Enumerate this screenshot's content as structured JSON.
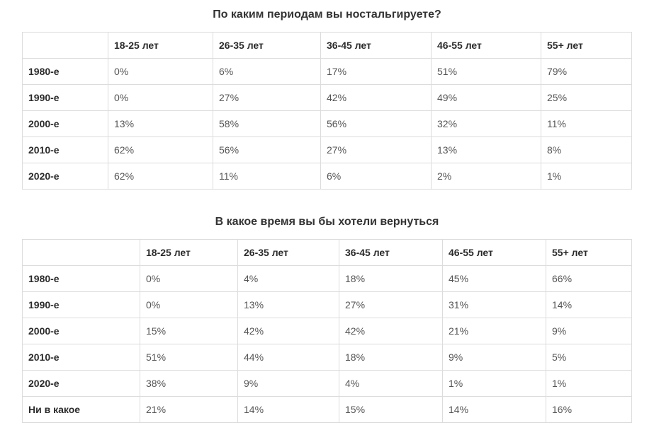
{
  "section1": {
    "title": "По каким периодам вы ностальгируете?",
    "columns": [
      "",
      "18-25 лет",
      "26-35 лет",
      "36-45 лет",
      "46-55 лет",
      "55+ лет"
    ],
    "rows": [
      {
        "label": "1980-е",
        "values": [
          "0%",
          "6%",
          "17%",
          "51%",
          "79%"
        ]
      },
      {
        "label": "1990-е",
        "values": [
          "0%",
          "27%",
          "42%",
          "49%",
          "25%"
        ]
      },
      {
        "label": "2000-е",
        "values": [
          "13%",
          "58%",
          "56%",
          "32%",
          "11%"
        ]
      },
      {
        "label": "2010-е",
        "values": [
          "62%",
          "56%",
          "27%",
          "13%",
          "8%"
        ]
      },
      {
        "label": "2020-е",
        "values": [
          "62%",
          "11%",
          "6%",
          "2%",
          "1%"
        ]
      }
    ]
  },
  "section2": {
    "title": "В какое время вы бы хотели вернуться",
    "columns": [
      "",
      "18-25 лет",
      "26-35 лет",
      "36-45 лет",
      "46-55 лет",
      "55+ лет"
    ],
    "rows": [
      {
        "label": "1980-е",
        "values": [
          "0%",
          "4%",
          "18%",
          "45%",
          "66%"
        ]
      },
      {
        "label": "1990-е",
        "values": [
          "0%",
          "13%",
          "27%",
          "31%",
          "14%"
        ]
      },
      {
        "label": "2000-е",
        "values": [
          "15%",
          "42%",
          "42%",
          "21%",
          "9%"
        ]
      },
      {
        "label": "2010-е",
        "values": [
          "51%",
          "44%",
          "18%",
          "9%",
          "5%"
        ]
      },
      {
        "label": "2020-е",
        "values": [
          "38%",
          "9%",
          "4%",
          "1%",
          "1%"
        ]
      },
      {
        "label": "Ни в какое",
        "values": [
          "21%",
          "14%",
          "15%",
          "14%",
          "16%"
        ]
      }
    ]
  }
}
